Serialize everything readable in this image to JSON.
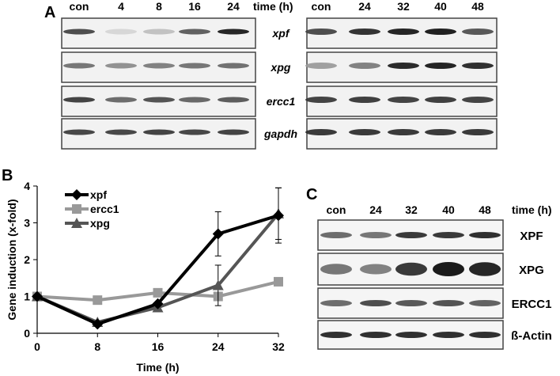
{
  "panels": {
    "a": {
      "letter": "A",
      "time_label": "time (h)",
      "left_lanes": [
        "con",
        "4",
        "8",
        "16",
        "24"
      ],
      "right_lanes": [
        "con",
        "24",
        "32",
        "40",
        "48"
      ],
      "genes": [
        "xpf",
        "xpg",
        "ercc1",
        "gapdh"
      ],
      "band_intensity": {
        "left": [
          [
            0.75,
            0.08,
            0.18,
            0.65,
            0.95
          ],
          [
            0.55,
            0.42,
            0.5,
            0.55,
            0.58
          ],
          [
            0.8,
            0.6,
            0.72,
            0.62,
            0.68
          ],
          [
            0.78,
            0.78,
            0.8,
            0.78,
            0.8
          ]
        ],
        "right": [
          [
            0.75,
            0.88,
            0.95,
            0.97,
            0.7
          ],
          [
            0.35,
            0.5,
            0.92,
            0.96,
            0.9
          ],
          [
            0.8,
            0.82,
            0.8,
            0.82,
            0.8
          ],
          [
            0.85,
            0.85,
            0.85,
            0.85,
            0.85
          ]
        ]
      }
    },
    "b": {
      "letter": "B"
    },
    "c": {
      "letter": "C",
      "time_label": "time (h)",
      "lanes": [
        "con",
        "24",
        "32",
        "40",
        "48"
      ],
      "proteins": [
        "XPF",
        "XPG",
        "ERCC1",
        "ß-Actin"
      ],
      "band_intensity": [
        [
          0.6,
          0.55,
          0.85,
          0.85,
          0.9
        ],
        [
          0.55,
          0.5,
          0.85,
          1.0,
          0.95
        ],
        [
          0.6,
          0.75,
          0.7,
          0.72,
          0.65
        ],
        [
          0.9,
          0.9,
          0.9,
          0.9,
          0.9
        ]
      ]
    }
  },
  "chart_data": {
    "type": "line",
    "xlabel": "Time (h)",
    "ylabel": "Gene induction (x-fold)",
    "x": [
      0,
      8,
      16,
      24,
      32
    ],
    "xlim": [
      0,
      32
    ],
    "ylim": [
      0,
      4
    ],
    "xticks": [
      "0",
      "8",
      "16",
      "24",
      "32"
    ],
    "yticks": [
      "0",
      "1",
      "2",
      "3",
      "4"
    ],
    "legend_position": "top-left",
    "series": [
      {
        "name": "xpf",
        "values": [
          1.0,
          0.25,
          0.8,
          2.7,
          3.2
        ],
        "err": [
          0,
          0,
          0,
          0.6,
          0.75
        ],
        "color": "#000000",
        "marker": "diamond"
      },
      {
        "name": "ercc1",
        "values": [
          1.0,
          0.9,
          1.1,
          1.0,
          1.4
        ],
        "err": [
          0,
          0,
          0,
          0,
          0
        ],
        "color": "#999999",
        "marker": "square"
      },
      {
        "name": "xpg",
        "values": [
          1.0,
          0.3,
          0.7,
          1.3,
          3.25
        ],
        "err": [
          0,
          0,
          0,
          0.55,
          0.7
        ],
        "color": "#555555",
        "marker": "triangle"
      }
    ]
  }
}
